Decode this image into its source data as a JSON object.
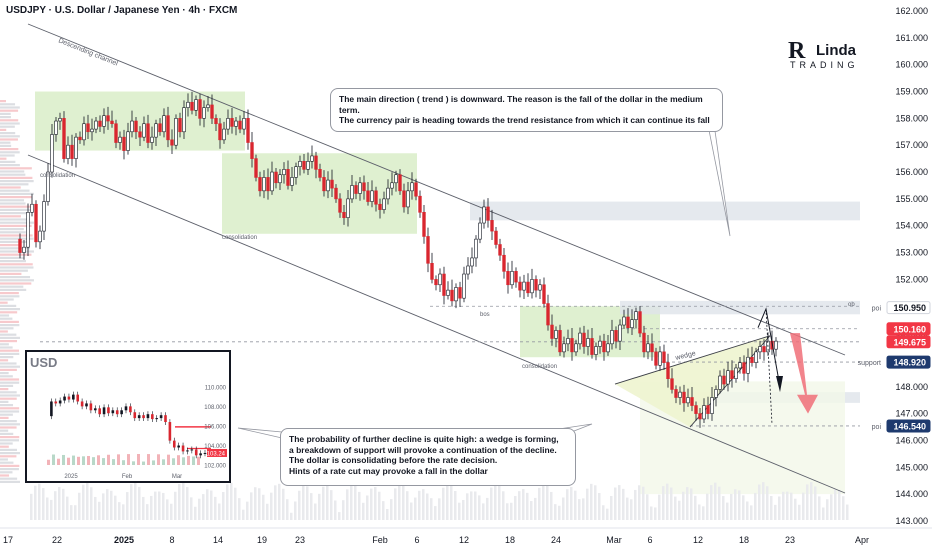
{
  "header": {
    "title": "USDJPY · U.S. Dollar / Japanese Yen · 4h · FXCM"
  },
  "logo": {
    "big": "R",
    "name": "Linda",
    "sub": "TRADING"
  },
  "callouts": {
    "top": "The main direction ( trend ) is downward. The reason is the fall of the dollar in the medium term.\nThe currency pair is heading towards the trend resistance from which it can continue its fall",
    "bottom": "The probability of further decline is quite high: a wedge is forming,\na breakdown of support will provoke a continuation of the decline.\nThe dollar is consolidating before the rate decision.\nHints of a rate cut may provoke a fall in the dollar"
  },
  "annotations": {
    "descending_channel": "Descending channel",
    "consolidation": "consolidation",
    "bos": "bos",
    "ob": "ob",
    "wedge": "wedge",
    "poi": "poi",
    "support": "support"
  },
  "price_tags": [
    {
      "value": "150.950",
      "label": "poi",
      "bg": "#ffffff",
      "fg": "#131722",
      "border": "#d1d4dc"
    },
    {
      "value": "150.160",
      "label": "",
      "bg": "#f23645",
      "fg": "#ffffff"
    },
    {
      "value": "149.675",
      "label": "",
      "bg": "#f23645",
      "fg": "#ffffff"
    },
    {
      "value": "148.920",
      "label": "support",
      "bg": "#1e3a6e",
      "fg": "#ffffff"
    },
    {
      "value": "146.540",
      "label": "poi",
      "bg": "#1e3a6e",
      "fg": "#ffffff"
    }
  ],
  "colors": {
    "up": "#089981",
    "down": "#f23645",
    "candle_body_down": "#d9262f",
    "zone_green": "#d7ecc4",
    "zone_grey": "#dfe3ea",
    "channel": "#5d606b"
  },
  "chart_data": [
    {
      "type": "candlestick",
      "title": "USDJPY · U.S. Dollar / Japanese Yen · 4h · FXCM",
      "y_axis": {
        "ticks": [
          "162.000",
          "161.000",
          "160.000",
          "159.000",
          "158.000",
          "157.000",
          "156.000",
          "155.000",
          "154.000",
          "153.000",
          "152.000",
          "151.000",
          "150.000",
          "149.000",
          "148.000",
          "147.000",
          "146.000",
          "145.000",
          "144.000",
          "143.000"
        ],
        "ylim": [
          143,
          162
        ]
      },
      "x_axis": {
        "ticks": [
          "17",
          "22",
          "2025",
          "8",
          "14",
          "19",
          "23",
          "Feb",
          "6",
          "12",
          "18",
          "24",
          "Mar",
          "6",
          "12",
          "18",
          "23",
          "Apr"
        ]
      },
      "path": [
        [
          0,
          153.5
        ],
        [
          4,
          153.0
        ],
        [
          8,
          153.2
        ],
        [
          12,
          154.5
        ],
        [
          16,
          154.8
        ],
        [
          20,
          153.4
        ],
        [
          24,
          153.8
        ],
        [
          28,
          154.9
        ],
        [
          32,
          156.0
        ],
        [
          36,
          157.4
        ],
        [
          40,
          157.9
        ],
        [
          44,
          158.0
        ],
        [
          48,
          156.5
        ],
        [
          52,
          157.0
        ],
        [
          56,
          156.5
        ],
        [
          60,
          157.3
        ],
        [
          64,
          157.2
        ],
        [
          68,
          157.8
        ],
        [
          72,
          157.5
        ],
        [
          76,
          157.6
        ],
        [
          80,
          157.9
        ],
        [
          84,
          157.7
        ],
        [
          88,
          158.1
        ],
        [
          92,
          157.9
        ],
        [
          96,
          157.8
        ],
        [
          100,
          157.1
        ],
        [
          104,
          157.3
        ],
        [
          108,
          156.8
        ],
        [
          112,
          157.5
        ],
        [
          116,
          157.9
        ],
        [
          120,
          157.5
        ],
        [
          124,
          157.3
        ],
        [
          128,
          157.8
        ],
        [
          132,
          157.1
        ],
        [
          136,
          157.3
        ],
        [
          140,
          157.8
        ],
        [
          144,
          157.5
        ],
        [
          148,
          158.1
        ],
        [
          152,
          157.2
        ],
        [
          156,
          157.0
        ],
        [
          160,
          158.0
        ],
        [
          164,
          157.5
        ],
        [
          168,
          158.4
        ],
        [
          172,
          158.6
        ],
        [
          176,
          158.3
        ],
        [
          180,
          158.7
        ],
        [
          184,
          158.0
        ],
        [
          188,
          158.4
        ],
        [
          192,
          158.5
        ],
        [
          196,
          158.0
        ],
        [
          200,
          157.8
        ],
        [
          204,
          157.2
        ],
        [
          208,
          157.6
        ],
        [
          212,
          158.0
        ],
        [
          216,
          157.7
        ],
        [
          220,
          157.9
        ],
        [
          224,
          157.6
        ],
        [
          228,
          158.0
        ],
        [
          232,
          157.1
        ],
        [
          236,
          156.5
        ],
        [
          240,
          155.8
        ],
        [
          244,
          155.3
        ],
        [
          248,
          155.8
        ],
        [
          252,
          155.3
        ],
        [
          256,
          156.0
        ],
        [
          260,
          155.6
        ],
        [
          264,
          155.9
        ],
        [
          268,
          156.1
        ],
        [
          272,
          155.5
        ],
        [
          276,
          155.8
        ],
        [
          280,
          156.2
        ],
        [
          284,
          156.4
        ],
        [
          288,
          156.1
        ],
        [
          292,
          156.4
        ],
        [
          296,
          156.6
        ],
        [
          300,
          156.1
        ],
        [
          304,
          155.8
        ],
        [
          308,
          155.3
        ],
        [
          312,
          155.7
        ],
        [
          316,
          155.4
        ],
        [
          320,
          155.0
        ],
        [
          324,
          154.5
        ],
        [
          328,
          154.3
        ],
        [
          332,
          155.0
        ],
        [
          336,
          155.5
        ],
        [
          340,
          155.2
        ],
        [
          344,
          155.6
        ],
        [
          348,
          155.3
        ],
        [
          352,
          154.9
        ],
        [
          356,
          155.3
        ],
        [
          360,
          154.8
        ],
        [
          364,
          154.6
        ],
        [
          368,
          155.0
        ],
        [
          372,
          155.4
        ],
        [
          376,
          155.6
        ],
        [
          380,
          155.9
        ],
        [
          384,
          155.3
        ],
        [
          388,
          154.7
        ],
        [
          392,
          155.3
        ],
        [
          396,
          155.6
        ],
        [
          400,
          155.1
        ],
        [
          404,
          154.5
        ],
        [
          408,
          153.6
        ],
        [
          412,
          152.6
        ],
        [
          416,
          152.0
        ],
        [
          420,
          151.8
        ],
        [
          424,
          152.2
        ],
        [
          428,
          151.4
        ],
        [
          432,
          151.6
        ],
        [
          436,
          151.2
        ],
        [
          440,
          151.7
        ],
        [
          444,
          151.3
        ],
        [
          448,
          152.2
        ],
        [
          452,
          152.5
        ],
        [
          456,
          152.8
        ],
        [
          460,
          153.5
        ],
        [
          464,
          154.1
        ],
        [
          468,
          154.7
        ],
        [
          472,
          154.2
        ],
        [
          476,
          153.8
        ],
        [
          480,
          153.3
        ],
        [
          484,
          152.9
        ],
        [
          488,
          152.3
        ],
        [
          492,
          151.8
        ],
        [
          496,
          152.3
        ],
        [
          500,
          151.9
        ],
        [
          504,
          151.6
        ],
        [
          508,
          151.9
        ],
        [
          512,
          151.5
        ],
        [
          516,
          152.0
        ],
        [
          520,
          151.6
        ],
        [
          524,
          151.8
        ],
        [
          528,
          151.1
        ],
        [
          532,
          150.3
        ],
        [
          536,
          149.8
        ],
        [
          540,
          150.1
        ],
        [
          544,
          149.3
        ],
        [
          548,
          149.6
        ],
        [
          552,
          149.8
        ],
        [
          556,
          149.3
        ],
        [
          560,
          149.6
        ],
        [
          564,
          150.0
        ],
        [
          568,
          149.5
        ],
        [
          572,
          149.8
        ],
        [
          576,
          149.2
        ],
        [
          580,
          149.5
        ],
        [
          584,
          149.7
        ],
        [
          588,
          149.3
        ],
        [
          592,
          149.6
        ],
        [
          596,
          150.1
        ],
        [
          600,
          149.7
        ],
        [
          604,
          150.3
        ],
        [
          608,
          150.6
        ],
        [
          612,
          150.2
        ],
        [
          616,
          150.5
        ],
        [
          620,
          150.8
        ],
        [
          624,
          150.0
        ],
        [
          628,
          149.3
        ],
        [
          632,
          149.6
        ],
        [
          636,
          149.3
        ],
        [
          640,
          148.8
        ],
        [
          644,
          149.3
        ],
        [
          648,
          148.9
        ],
        [
          652,
          148.3
        ],
        [
          656,
          147.9
        ],
        [
          660,
          147.6
        ],
        [
          664,
          147.8
        ],
        [
          668,
          147.4
        ],
        [
          672,
          147.6
        ],
        [
          676,
          147.3
        ],
        [
          680,
          147.0
        ],
        [
          684,
          146.8
        ],
        [
          688,
          147.3
        ],
        [
          692,
          147.0
        ],
        [
          696,
          147.6
        ],
        [
          700,
          147.9
        ],
        [
          704,
          148.4
        ],
        [
          708,
          148.1
        ],
        [
          712,
          148.6
        ],
        [
          716,
          148.3
        ],
        [
          720,
          148.7
        ],
        [
          724,
          148.9
        ],
        [
          728,
          148.5
        ],
        [
          732,
          149.1
        ],
        [
          736,
          148.9
        ],
        [
          740,
          149.3
        ],
        [
          744,
          149.5
        ],
        [
          748,
          149.3
        ],
        [
          752,
          149.7
        ],
        [
          756,
          149.4
        ],
        [
          760,
          149.7
        ]
      ]
    },
    {
      "type": "line",
      "title": "USD",
      "y_axis": {
        "ticks": [
          "110.000",
          "108.000",
          "106.000",
          "104.000",
          "102.000"
        ],
        "ylim": [
          101.5,
          111
        ]
      },
      "x_axis": {
        "ticks": [
          "2025",
          "Feb",
          "Mar"
        ]
      },
      "current_value_label": "103.24",
      "values": [
        107.0,
        108.5,
        108.3,
        108.6,
        109.0,
        108.7,
        109.2,
        108.5,
        108.0,
        108.3,
        107.6,
        107.8,
        107.2,
        107.9,
        107.3,
        107.6,
        107.2,
        107.6,
        108.0,
        107.4,
        106.8,
        107.1,
        106.8,
        107.2,
        106.7,
        106.8,
        107.1,
        106.4,
        104.5,
        103.8,
        104.0,
        103.4,
        103.5,
        103.6,
        103.0,
        103.2,
        103.24
      ]
    }
  ]
}
